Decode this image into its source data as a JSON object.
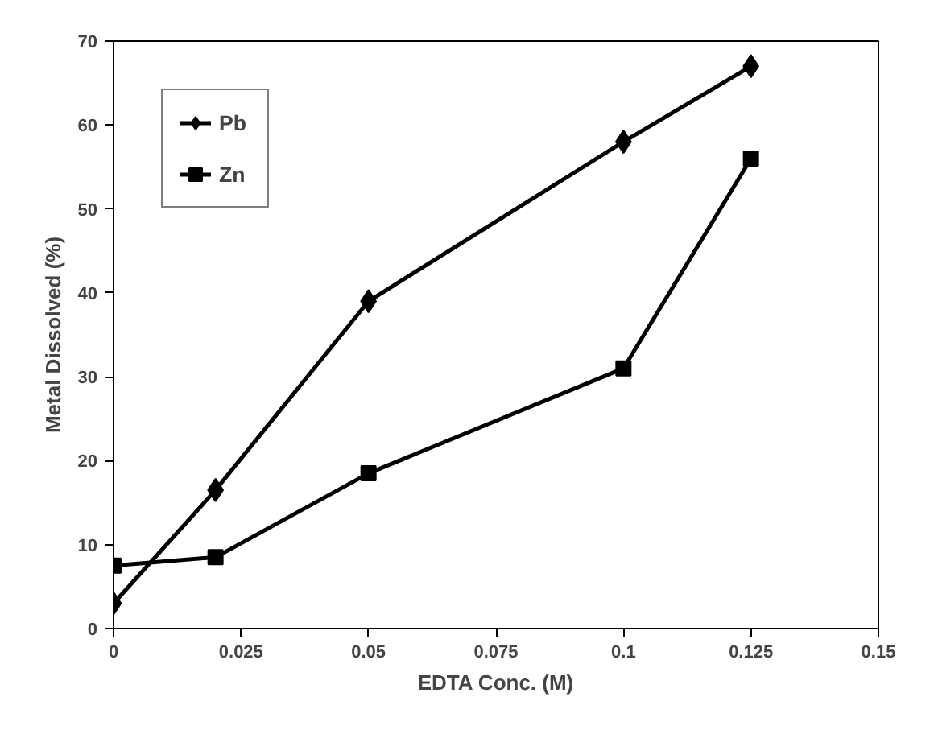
{
  "chart_data": {
    "type": "line",
    "xlabel": "EDTA Conc. (M)",
    "ylabel": "Metal Dissolved (%)",
    "x": [
      0,
      0.02,
      0.05,
      0.1,
      0.125
    ],
    "series": [
      {
        "name": "Pb",
        "color": "#000000",
        "marker": "diamond",
        "values": [
          3,
          16.5,
          39,
          58,
          67
        ]
      },
      {
        "name": "Zn",
        "color": "#000000",
        "marker": "square",
        "values": [
          7.5,
          8.5,
          18.5,
          31,
          56
        ]
      }
    ],
    "xlim": [
      0,
      0.15
    ],
    "xticks": [
      0,
      0.025,
      0.05,
      0.075,
      0.1,
      0.125,
      0.15
    ],
    "ylim": [
      0,
      70
    ],
    "yticks": [
      0,
      10,
      20,
      30,
      40,
      50,
      60,
      70
    ],
    "grid": false,
    "legend": "top left",
    "line_style": "solid"
  }
}
